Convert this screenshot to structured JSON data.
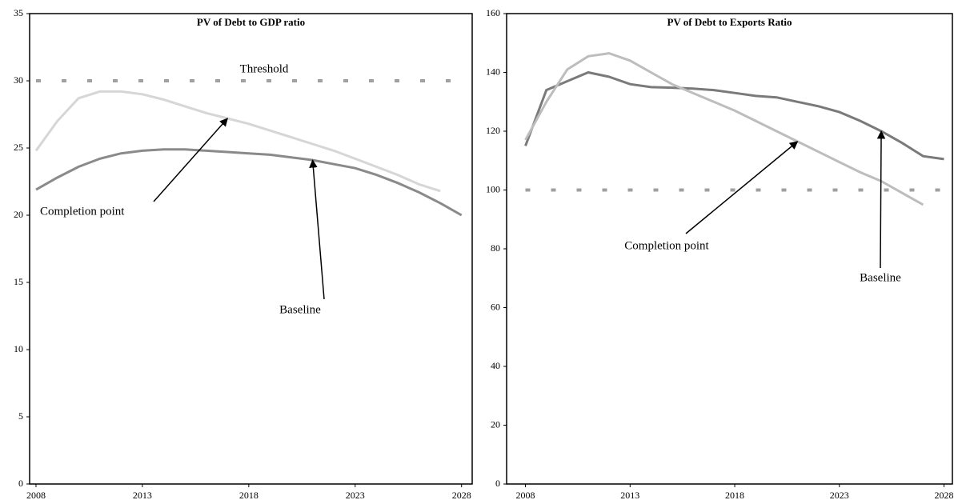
{
  "chart_data": [
    {
      "type": "line",
      "title": "PV of Debt to GDP ratio",
      "x": [
        2008,
        2009,
        2010,
        2011,
        2012,
        2013,
        2014,
        2015,
        2016,
        2017,
        2018,
        2019,
        2020,
        2021,
        2022,
        2023,
        2024,
        2025,
        2026,
        2027,
        2028
      ],
      "xlim": [
        2007.7,
        2028.5
      ],
      "xticks": [
        2008,
        2013,
        2018,
        2023,
        2028
      ],
      "ylim": [
        0,
        35
      ],
      "yticks": [
        0,
        5,
        10,
        15,
        20,
        25,
        30,
        35
      ],
      "series": [
        {
          "name": "Baseline",
          "color": "#8a8a8a",
          "values": [
            21.9,
            22.8,
            23.6,
            24.2,
            24.6,
            24.8,
            24.9,
            24.9,
            24.8,
            24.7,
            24.6,
            24.5,
            24.3,
            24.1,
            23.8,
            23.5,
            23.0,
            22.4,
            21.7,
            20.9,
            20.0
          ]
        },
        {
          "name": "Completion point",
          "color": "#d6d6d6",
          "values": [
            24.8,
            27.0,
            28.7,
            29.2,
            29.2,
            29.0,
            28.6,
            28.1,
            27.6,
            27.2,
            26.8,
            26.3,
            25.8,
            25.3,
            24.8,
            24.2,
            23.6,
            23.0,
            22.3,
            21.8,
            null
          ]
        },
        {
          "name": "Threshold",
          "color": "#a0a0a0",
          "dashed": true,
          "values": [
            30,
            30,
            30,
            30,
            30,
            30,
            30,
            30,
            30,
            30,
            30,
            30,
            30,
            30,
            30,
            30,
            30,
            30,
            30,
            30,
            30
          ]
        }
      ]
    },
    {
      "type": "line",
      "title": "PV of Debt to Exports Ratio",
      "x": [
        2008,
        2009,
        2010,
        2011,
        2012,
        2013,
        2014,
        2015,
        2016,
        2017,
        2018,
        2019,
        2020,
        2021,
        2022,
        2023,
        2024,
        2025,
        2026,
        2027,
        2028
      ],
      "xlim": [
        2007.1,
        2028.4
      ],
      "xticks": [
        2008,
        2013,
        2018,
        2023,
        2028
      ],
      "ylim": [
        0,
        160
      ],
      "yticks": [
        0,
        20,
        40,
        60,
        80,
        100,
        120,
        140,
        160
      ],
      "series": [
        {
          "name": "Baseline",
          "color": "#7a7a7a",
          "values": [
            115,
            134,
            137,
            140,
            138.5,
            136,
            135,
            134.8,
            134.5,
            134,
            133,
            132,
            131.5,
            130,
            128.5,
            126.5,
            123.5,
            120,
            116,
            111.5,
            110.5
          ]
        },
        {
          "name": "Completion point",
          "color": "#bdbdbd",
          "values": [
            117,
            130,
            141,
            145.5,
            146.5,
            144,
            140,
            136,
            133,
            130,
            127,
            123.5,
            120,
            116.5,
            113,
            109.5,
            106,
            103,
            99,
            95,
            null
          ]
        },
        {
          "color": "#a0a0a0",
          "dashed": true,
          "values": [
            100,
            100,
            100,
            100,
            100,
            100,
            100,
            100,
            100,
            100,
            100,
            100,
            100,
            100,
            100,
            100,
            100,
            100,
            100,
            100,
            100
          ]
        }
      ]
    }
  ]
}
